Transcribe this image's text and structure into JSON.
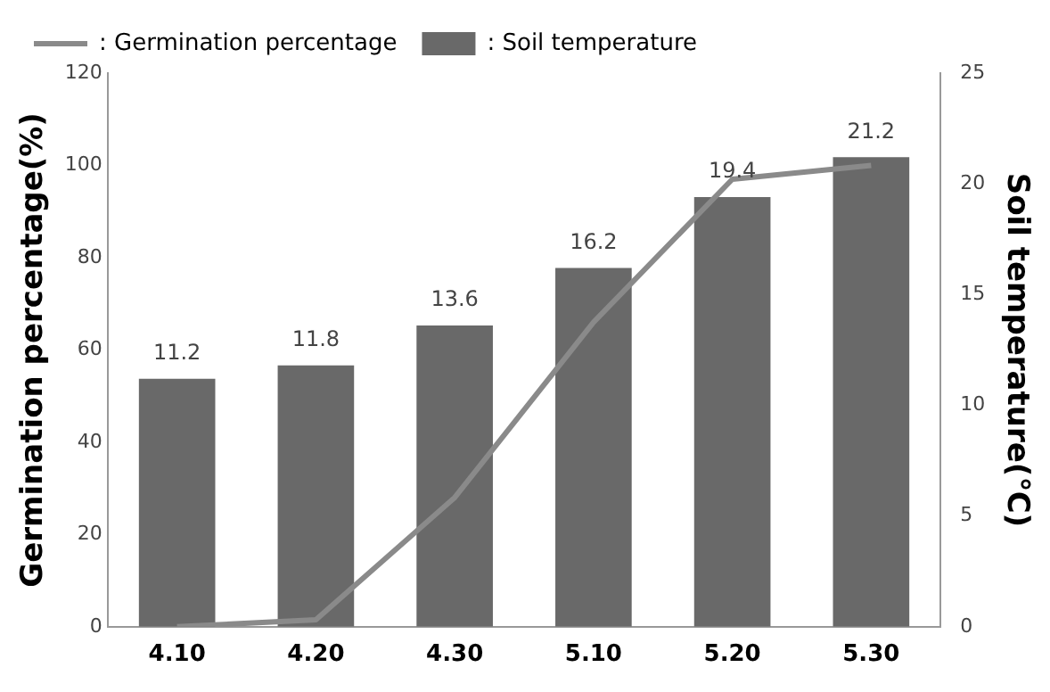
{
  "chart_data": {
    "type": "bar",
    "categories": [
      "4.10",
      "4.20",
      "4.30",
      "5.10",
      "5.20",
      "5.30"
    ],
    "ylabel": "Germination percentage(%)",
    "y2label": "Soil temperature(℃)",
    "ylim": [
      0,
      120
    ],
    "yticks": [
      0,
      20,
      40,
      60,
      80,
      100,
      120
    ],
    "y2lim": [
      0,
      25
    ],
    "y2ticks": [
      0,
      5,
      10,
      15,
      20,
      25
    ],
    "legend": "top left",
    "grid": false,
    "series": [
      {
        "name": ": Germination percentage",
        "type": "line",
        "color": "#8a8a8a",
        "marker": "none",
        "values": [
          0,
          1.5,
          28,
          66,
          97,
          100
        ]
      },
      {
        "name": ": Soil temperature",
        "type": "bar",
        "axis": "y2",
        "color": "#696969",
        "values": [
          11.2,
          11.8,
          13.6,
          16.2,
          19.4,
          21.2
        ],
        "value_labels": [
          "11.2",
          "11.8",
          "13.6",
          "16.2",
          "19.4",
          "21.2"
        ]
      }
    ]
  }
}
